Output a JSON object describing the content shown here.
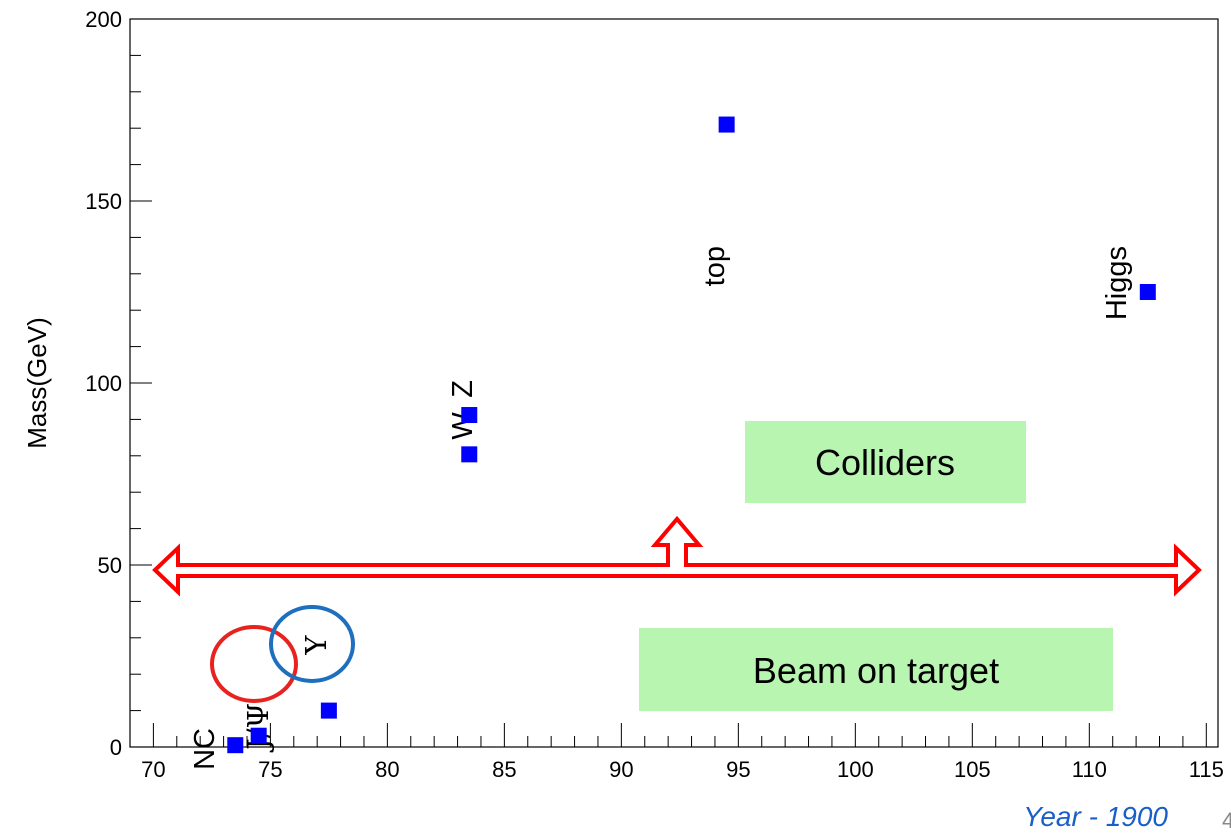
{
  "chart_data": {
    "type": "scatter",
    "xlabel": "Year - 1900",
    "ylabel": "Mass(GeV)",
    "xlim": [
      69,
      115.5
    ],
    "ylim": [
      0,
      200
    ],
    "x_ticks": [
      "70",
      "75",
      "80",
      "85",
      "90",
      "95",
      "100",
      "105",
      "110",
      "115"
    ],
    "y_ticks": [
      "0",
      "50",
      "100",
      "150",
      "200"
    ],
    "grid": false,
    "legend": "none",
    "marker_color": "#0000ff",
    "series": [
      {
        "values": [
          {
            "x": 73.5,
            "y": 0.5
          },
          {
            "x": 74.5,
            "y": 3.1
          },
          {
            "x": 77.5,
            "y": 10.0
          },
          {
            "x": 83.5,
            "y": 80.4
          },
          {
            "x": 83.5,
            "y": 91.2
          },
          {
            "x": 94.5,
            "y": 171
          },
          {
            "x": 112.5,
            "y": 125
          }
        ]
      }
    ],
    "annotations": {
      "nc": "NC",
      "jpsi": "J/Ψ",
      "upsilon": "Υ",
      "wz": "W, Z",
      "top": "top",
      "higgs": "Higgs",
      "colliders": "Colliders",
      "beam_on_target": "Beam on target"
    },
    "colors": {
      "arrow": "#ff0000",
      "label_box": "#b7f5b0",
      "jpsi_circle": "#e8231f",
      "upsilon_circle": "#1f6fbf",
      "xlabel": "#1a5fc8"
    }
  },
  "page_number": "4"
}
